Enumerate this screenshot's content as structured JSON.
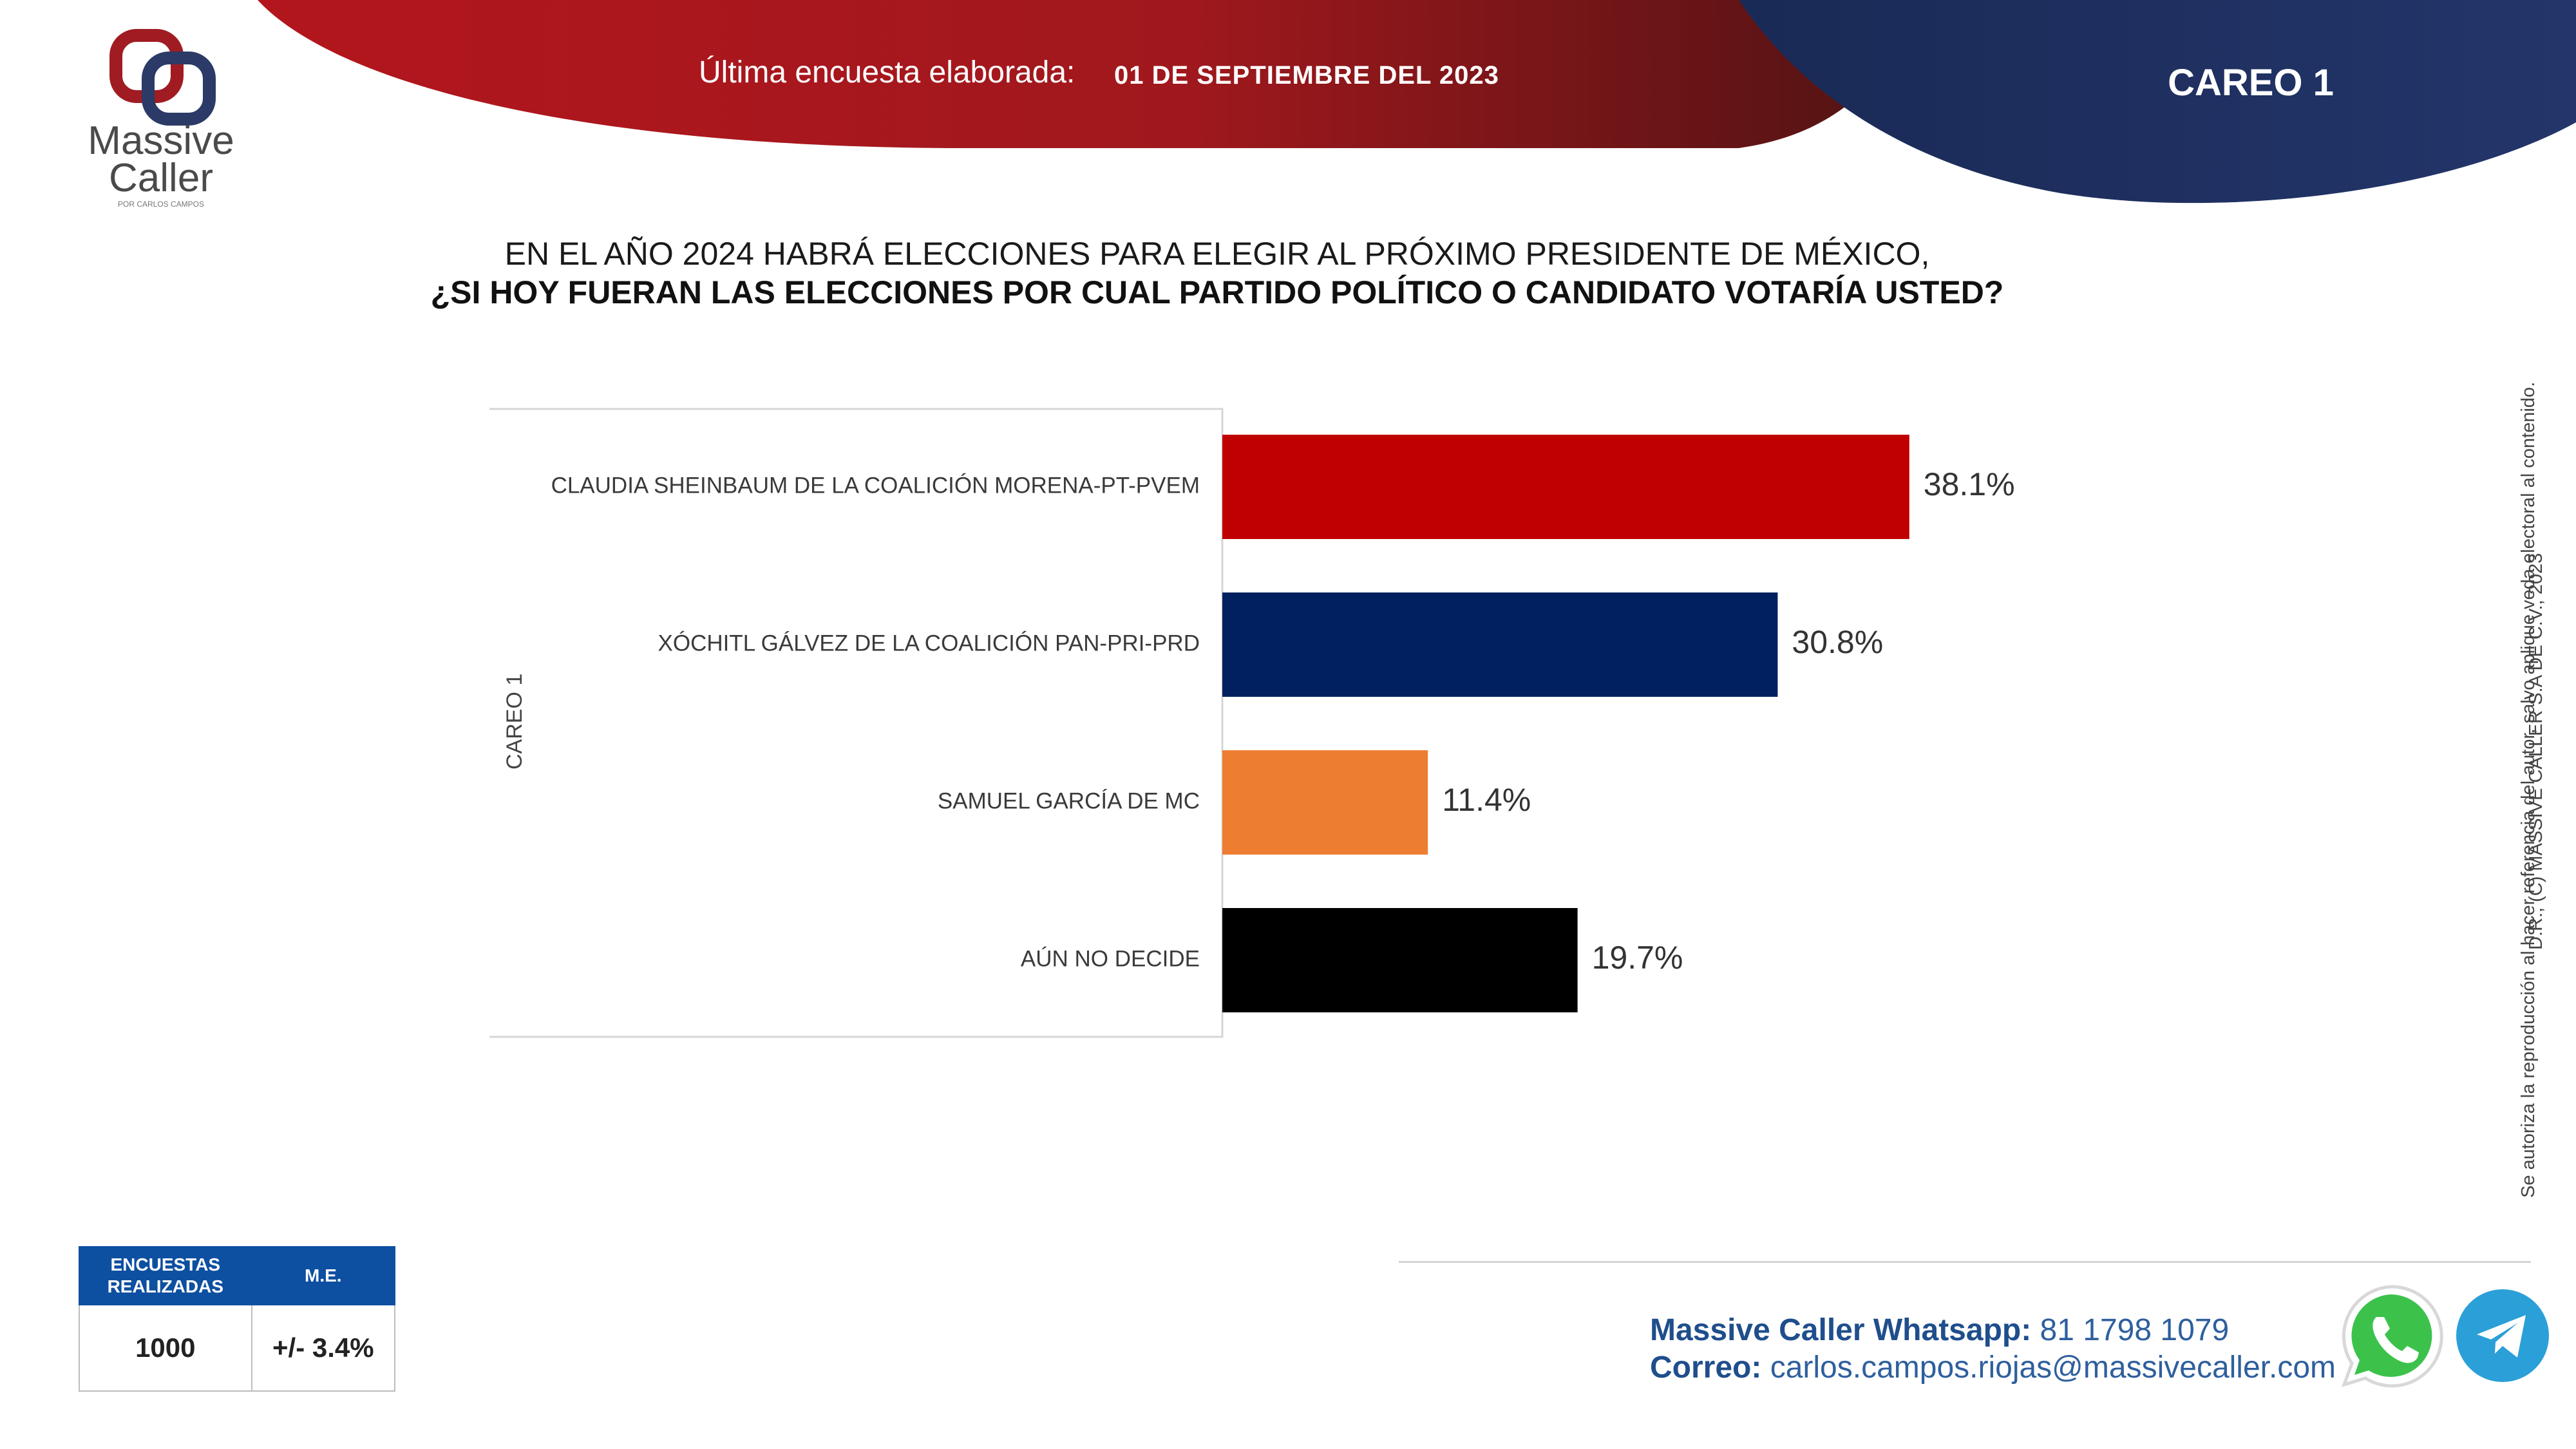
{
  "brand": {
    "name_line1": "Massive",
    "name_line2": "Caller",
    "tagline": "POR CARLOS CAMPOS"
  },
  "header": {
    "survey_label": "Última encuesta elaborada:",
    "survey_date": "01 DE SEPTIEMBRE DEL 2023",
    "careo_title": "CAREO 1"
  },
  "question": {
    "line1": "EN EL AÑO 2024 HABRÁ ELECCIONES PARA ELEGIR AL PRÓXIMO PRESIDENTE DE MÉXICO,",
    "line2": "¿SI HOY FUERAN LAS ELECCIONES POR CUAL PARTIDO POLÍTICO O CANDIDATO VOTARÍA USTED?"
  },
  "side_label": "CAREO 1",
  "chart_data": {
    "type": "bar",
    "orientation": "horizontal",
    "group_label": "CAREO 1",
    "categories": [
      "CLAUDIA SHEINBAUM DE LA COALICIÓN MORENA-PT-PVEM",
      "XÓCHITL GÁLVEZ DE LA COALICIÓN PAN-PRI-PRD",
      "SAMUEL GARCÍA DE MC",
      "AÚN NO DECIDE"
    ],
    "values": [
      38.1,
      30.8,
      11.4,
      19.7
    ],
    "value_labels": [
      "38.1%",
      "30.8%",
      "11.4%",
      "19.7%"
    ],
    "colors": [
      "#c00000",
      "#002060",
      "#ed7d31",
      "#000000"
    ],
    "unit": "%",
    "grid": false,
    "legend": "none"
  },
  "legal": {
    "line1": "D.R., (C) MASSIVE CALLER S.A DE C.V., 2023",
    "line2": "Se autoriza la reproducción al hacer referencia del autor, salvo aplique veda electoral al contenido."
  },
  "stats": {
    "col1_header_line1": "ENCUESTAS",
    "col1_header_line2": "REALIZADAS",
    "col2_header": "M.E.",
    "col1_value": "1000",
    "col2_value": "+/- 3.4%"
  },
  "contact": {
    "whatsapp_label": "Massive Caller Whatsapp:",
    "whatsapp_number": "81 1798 1079",
    "email_label": "Correo:",
    "email_value": "carlos.campos.riojas@massivecaller.com"
  },
  "colors": {
    "header_red": "#b3161d",
    "header_dark_red": "#5a1414",
    "header_navy": "#1f2f5e",
    "accent_blue": "#0d4fa0"
  },
  "icons": {
    "whatsapp": "whatsapp-icon",
    "telegram": "telegram-icon"
  }
}
